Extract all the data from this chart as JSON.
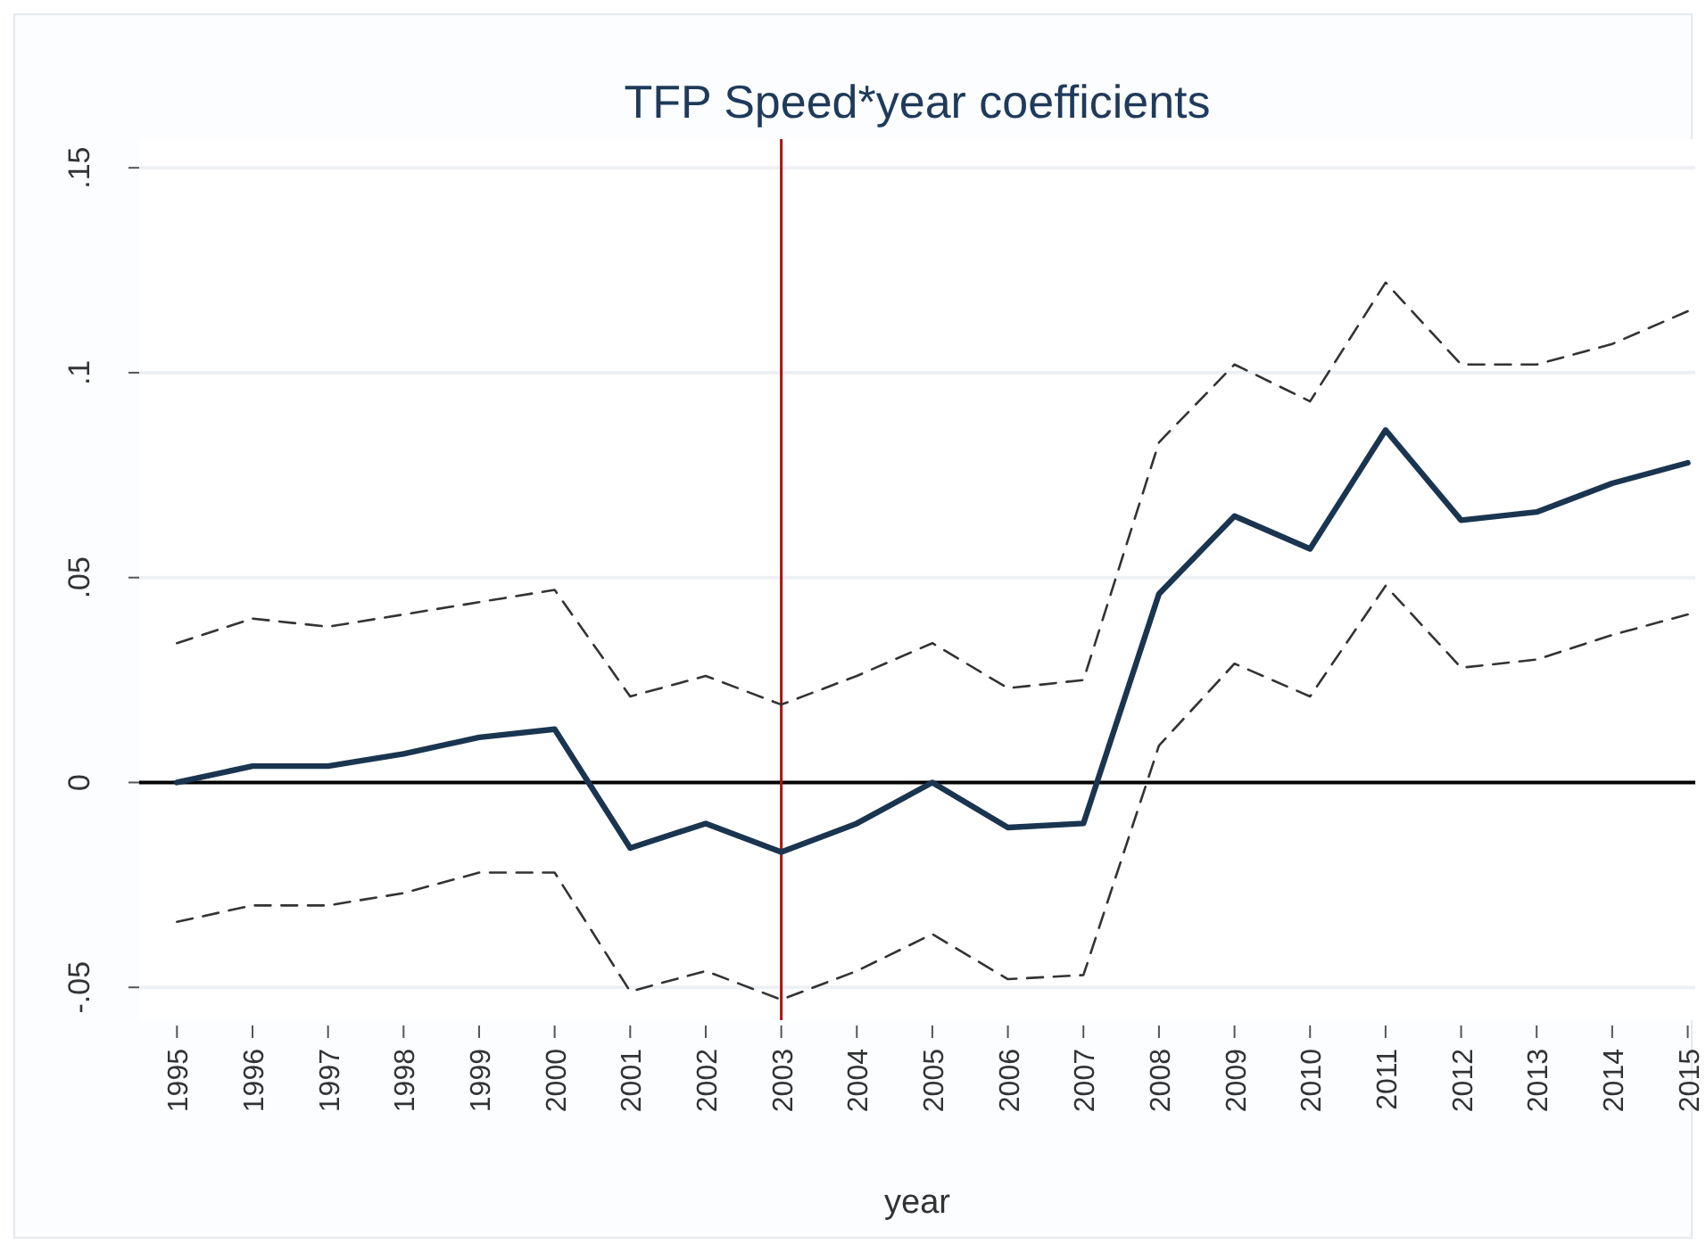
{
  "chart_data": {
    "type": "line",
    "title": "TFP Speed*year coefficients",
    "xlabel": "year",
    "x": [
      1995,
      1996,
      1997,
      1998,
      1999,
      2000,
      2001,
      2002,
      2003,
      2004,
      2005,
      2006,
      2007,
      2008,
      2009,
      2010,
      2011,
      2012,
      2013,
      2014,
      2015
    ],
    "xlim": [
      1994.5,
      2015.1
    ],
    "xticks": [
      1995,
      1996,
      1997,
      1998,
      1999,
      2000,
      2001,
      2002,
      2003,
      2004,
      2005,
      2006,
      2007,
      2008,
      2009,
      2010,
      2011,
      2012,
      2013,
      2014,
      2015
    ],
    "ylim": [
      -0.058,
      0.157
    ],
    "yticks": [
      {
        "value": -0.05,
        "label": "-.05"
      },
      0,
      {
        "value": 0.05,
        "label": ".05"
      },
      {
        "value": 0.1,
        "label": ".1"
      },
      {
        "value": 0.15,
        "label": ".15"
      }
    ],
    "grid": "y",
    "series": [
      {
        "color": "#1a3550",
        "line_style": "solid",
        "values": [
          0,
          0.004,
          0.004,
          0.007,
          0.011,
          0.013,
          -0.016,
          -0.01,
          -0.017,
          -0.01,
          0.0,
          -0.011,
          -0.01,
          0.046,
          0.065,
          0.057,
          0.086,
          0.064,
          0.066,
          0.073,
          0.078
        ]
      },
      {
        "color": "#333333",
        "line_style": "dashed",
        "values": [
          0.034,
          0.04,
          0.038,
          0.041,
          0.044,
          0.047,
          0.021,
          0.026,
          0.019,
          0.026,
          0.034,
          0.023,
          0.025,
          0.083,
          0.102,
          0.093,
          0.122,
          0.102,
          0.102,
          0.107,
          0.115
        ]
      },
      {
        "color": "#333333",
        "line_style": "dashed",
        "values": [
          -0.034,
          -0.03,
          -0.03,
          -0.027,
          -0.022,
          -0.022,
          -0.051,
          -0.046,
          -0.053,
          -0.046,
          -0.037,
          -0.048,
          -0.047,
          0.009,
          0.029,
          0.021,
          0.048,
          0.028,
          0.03,
          0.036,
          0.041
        ]
      }
    ],
    "ref_lines": [
      {
        "axis": "y",
        "value": 0,
        "color": "#000000"
      },
      {
        "axis": "x",
        "value": 2003,
        "color": "#b01010"
      }
    ]
  }
}
